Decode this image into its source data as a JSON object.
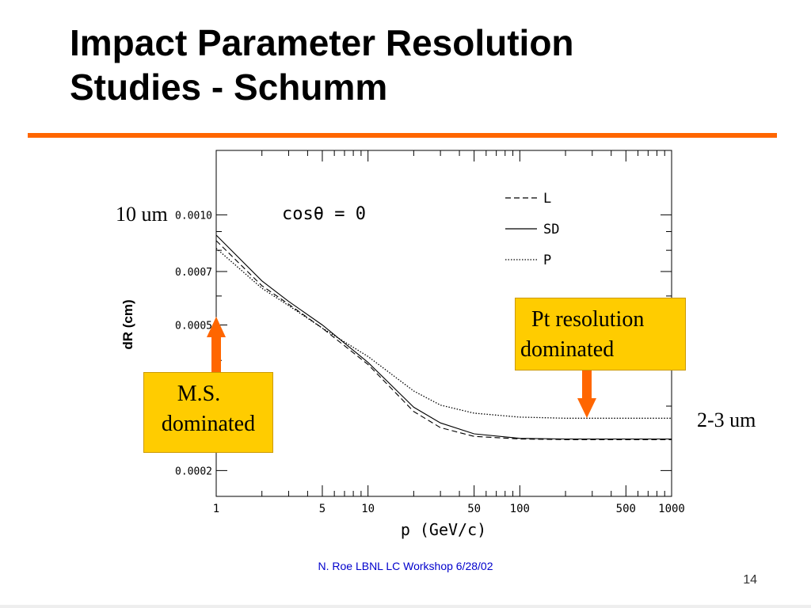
{
  "slide": {
    "title_line1": "Impact Parameter Resolution",
    "title_line2": "Studies - Schumm",
    "footer": "N. Roe LBNL LC Workshop 6/28/02",
    "page_number": "14",
    "accent_color": "#ff6600",
    "box_color": "#ffcc00",
    "arrow_color": "#ff6600"
  },
  "annotations": {
    "top_left": "10 um",
    "right": "2-3 um",
    "ms_box_line1": "M.S.",
    "ms_box_line2": "dominated",
    "pt_box_line1": "Pt resolution",
    "pt_box_line2": "dominated"
  },
  "chart_data": {
    "type": "line",
    "xscale": "log",
    "yscale": "log",
    "xlabel": "p (GeV/c)",
    "ylabel": "dR (cm)",
    "xlim": [
      1,
      1000
    ],
    "ylim": [
      0.00017,
      0.0015
    ],
    "x_ticks": [
      1,
      5,
      10,
      50,
      100,
      500,
      1000
    ],
    "x_tick_labels": [
      "1",
      "5",
      "10",
      "50",
      "100",
      "500",
      "1000"
    ],
    "y_ticks": [
      0.0002,
      0.0005,
      0.0007,
      0.001
    ],
    "y_tick_labels": [
      "0.0002",
      "0.0005",
      "0.0007",
      "0.0010"
    ],
    "annotation": "cosθ = 0",
    "legend_position": "top-right",
    "series": [
      {
        "name": "L",
        "style": "dashed",
        "x": [
          1,
          2,
          3,
          5,
          10,
          20,
          30,
          50,
          100,
          200,
          500,
          1000
        ],
        "y": [
          0.00085,
          0.00064,
          0.00057,
          0.00049,
          0.00039,
          0.00029,
          0.000262,
          0.000248,
          0.000244,
          0.000243,
          0.000243,
          0.000243
        ]
      },
      {
        "name": "SD",
        "style": "solid",
        "x": [
          1,
          2,
          3,
          5,
          10,
          20,
          30,
          50,
          100,
          200,
          500,
          1000
        ],
        "y": [
          0.00088,
          0.00066,
          0.00058,
          0.0005,
          0.000395,
          0.000298,
          0.00027,
          0.000252,
          0.000245,
          0.000244,
          0.000244,
          0.000244
        ]
      },
      {
        "name": "P",
        "style": "dotted",
        "x": [
          1,
          2,
          3,
          5,
          10,
          20,
          30,
          50,
          100,
          200,
          500,
          1000
        ],
        "y": [
          0.00081,
          0.00063,
          0.000565,
          0.00049,
          0.00041,
          0.00033,
          0.000302,
          0.000287,
          0.00028,
          0.000278,
          0.000278,
          0.000278
        ]
      }
    ]
  }
}
